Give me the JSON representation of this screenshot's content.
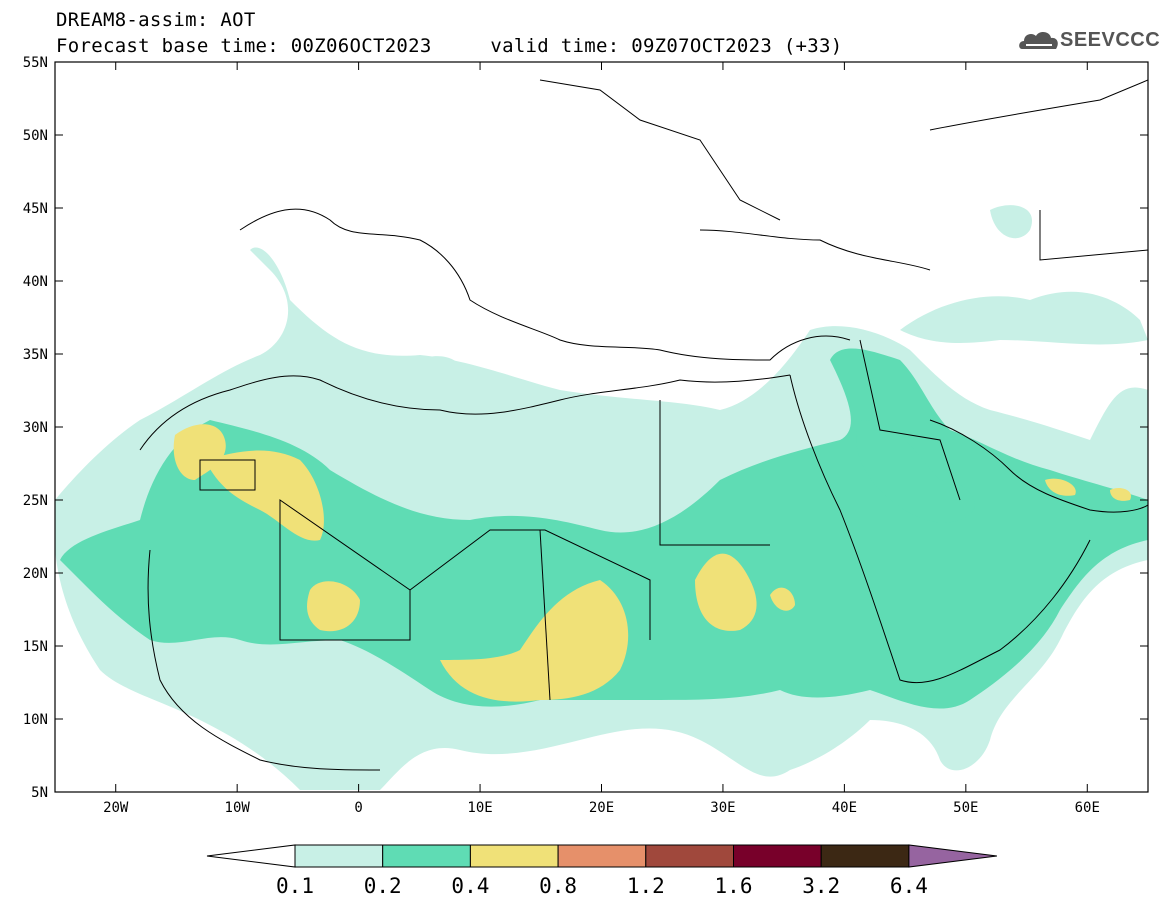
{
  "header": {
    "title": "DREAM8-assim: AOT",
    "subtitle": "Forecast base time: 00Z06OCT2023     valid time: 09Z07OCT2023 (+33)",
    "logo_text": "SEEVCCC"
  },
  "map": {
    "lat_ticks": [
      "55N",
      "50N",
      "45N",
      "40N",
      "35N",
      "30N",
      "25N",
      "20N",
      "15N",
      "10N",
      "5N"
    ],
    "lon_ticks": [
      "20W",
      "10W",
      "0",
      "10E",
      "20E",
      "30E",
      "40E",
      "50E",
      "60E"
    ],
    "lat_range": [
      5,
      55
    ],
    "lon_range": [
      -25,
      65
    ],
    "variable": "AOT"
  },
  "colorbar": {
    "levels": [
      "0.1",
      "0.2",
      "0.4",
      "0.8",
      "1.2",
      "1.6",
      "3.2",
      "6.4"
    ],
    "colors": [
      "#ffffff",
      "#c8f0e6",
      "#5fdcb4",
      "#f0e178",
      "#e6906a",
      "#a0483c",
      "#78002a",
      "#3c2814",
      "#9664a0"
    ]
  },
  "colors": {
    "aot_0_1": "#c8f0e6",
    "aot_0_2": "#5fdcb4",
    "aot_0_4": "#f0e178",
    "aot_0_8": "#e6906a"
  }
}
